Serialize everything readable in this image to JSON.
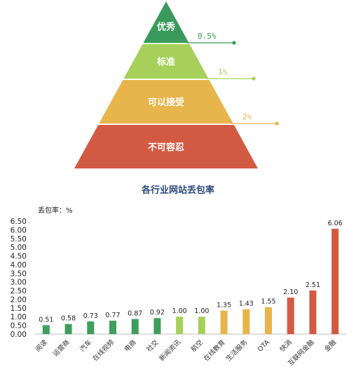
{
  "pyramid": {
    "levels": [
      {
        "label": "优秀",
        "rate": "0.5%",
        "color": "#3a9a5b",
        "line_color": "#3a9a5b"
      },
      {
        "label": "标准",
        "rate": "1%",
        "color": "#a6d05a",
        "line_color": "#a6d05a"
      },
      {
        "label": "可以接受",
        "rate": "2%",
        "color": "#e8b44c",
        "line_color": "#e8b44c"
      },
      {
        "label": "不可容忍",
        "rate": "",
        "color": "#d35a42",
        "line_color": "#d35a42"
      }
    ]
  },
  "chart_data": {
    "type": "bar",
    "title": "各行业网站丢包率",
    "ylabel": "丢包率：%",
    "ylim": [
      0,
      6.5
    ],
    "yticks": [
      "0.00",
      "0.50",
      "1.00",
      "1.50",
      "2.00",
      "2.50",
      "3.00",
      "3.50",
      "4.00",
      "4.50",
      "5.00",
      "5.50",
      "6.00",
      "6.50"
    ],
    "categories": [
      "阅读",
      "运营商",
      "汽车",
      "在线视频",
      "电商",
      "社交",
      "新闻资讯",
      "航空",
      "在线教育",
      "生活服务",
      "OTA",
      "快消",
      "互联网金融",
      "金融"
    ],
    "values": [
      0.51,
      0.58,
      0.73,
      0.77,
      0.87,
      0.92,
      1.0,
      1.0,
      1.35,
      1.43,
      1.55,
      2.1,
      2.51,
      6.06
    ],
    "value_labels": [
      "0.51",
      "0.58",
      "0.73",
      "0.77",
      "0.87",
      "0.92",
      "1.00",
      "1.00",
      "1.35",
      "1.43",
      "1.55",
      "2.10",
      "2.51",
      "6.06"
    ],
    "bar_colors": [
      "#3f9e5c",
      "#3f9e5c",
      "#3f9e5c",
      "#3f9e5c",
      "#3f9e5c",
      "#3f9e5c",
      "#a6d05a",
      "#a6d05a",
      "#e8b44c",
      "#e8b44c",
      "#e8b44c",
      "#d35a42",
      "#d35a42",
      "#d35a42"
    ],
    "grid": false
  }
}
